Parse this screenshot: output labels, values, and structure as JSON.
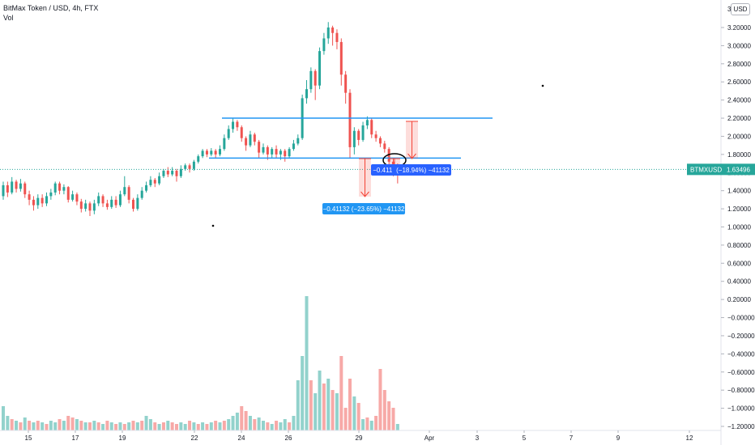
{
  "header": {
    "symbol_line": "BitMax Token / USD, 4h, FTX",
    "volume_label": "Vol",
    "currency_button": "USD"
  },
  "price_tag": {
    "symbol": "BTMXUSD",
    "value": "1.63496"
  },
  "measure_labels": [
    {
      "text": "−0.411   (−18.94%) −41132",
      "color": "#2962ff"
    },
    {
      "text": "−0.41132 (−23.65%) −41132",
      "color": "#2196f3"
    }
  ],
  "colors": {
    "up": "#26a69a",
    "down": "#ef5350",
    "line": "#2196f3",
    "price": "#26a69a",
    "measure": "#f44336"
  },
  "chart_data": {
    "type": "candlestick",
    "y_axis": {
      "ticks": [
        "3.20000",
        "3.00000",
        "2.80000",
        "2.60000",
        "2.40000",
        "2.20000",
        "2.00000",
        "1.80000",
        "1.60000",
        "1.40000",
        "1.20000",
        "1.00000",
        "0.80000",
        "0.60000",
        "0.40000",
        "0.20000",
        "−0.00000",
        "−0.20000",
        "−0.40000",
        "−0.60000",
        "−0.80000",
        "−1.00000",
        "−1.20000"
      ],
      "range": [
        -1.25,
        3.4
      ],
      "partial_top_label": "3."
    },
    "x_axis": {
      "ticks": [
        "15",
        "17",
        "19",
        "22",
        "24",
        "26",
        "29",
        "Apr",
        "3",
        "5",
        "7",
        "9",
        "12"
      ]
    },
    "horizontal_lines": [
      2.2,
      1.76
    ],
    "last_price": 1.63496,
    "candles": [
      [
        1.34,
        1.46,
        1.5,
        1.3
      ],
      [
        1.46,
        1.38,
        1.5,
        1.33
      ],
      [
        1.38,
        1.5,
        1.55,
        1.36
      ],
      [
        1.5,
        1.42,
        1.52,
        1.38
      ],
      [
        1.42,
        1.48,
        1.53,
        1.39
      ],
      [
        1.48,
        1.36,
        1.5,
        1.32
      ],
      [
        1.36,
        1.3,
        1.4,
        1.24
      ],
      [
        1.3,
        1.24,
        1.34,
        1.18
      ],
      [
        1.24,
        1.32,
        1.36,
        1.2
      ],
      [
        1.32,
        1.26,
        1.36,
        1.22
      ],
      [
        1.26,
        1.34,
        1.38,
        1.23
      ],
      [
        1.34,
        1.38,
        1.42,
        1.3
      ],
      [
        1.38,
        1.48,
        1.5,
        1.35
      ],
      [
        1.48,
        1.4,
        1.5,
        1.36
      ],
      [
        1.4,
        1.44,
        1.47,
        1.36
      ],
      [
        1.44,
        1.3,
        1.45,
        1.27
      ],
      [
        1.3,
        1.36,
        1.4,
        1.28
      ],
      [
        1.36,
        1.28,
        1.38,
        1.24
      ],
      [
        1.28,
        1.2,
        1.31,
        1.16
      ],
      [
        1.2,
        1.26,
        1.3,
        1.17
      ],
      [
        1.26,
        1.18,
        1.28,
        1.12
      ],
      [
        1.18,
        1.26,
        1.3,
        1.14
      ],
      [
        1.26,
        1.34,
        1.38,
        1.23
      ],
      [
        1.34,
        1.26,
        1.36,
        1.22
      ],
      [
        1.26,
        1.22,
        1.3,
        1.19
      ],
      [
        1.22,
        1.3,
        1.34,
        1.2
      ],
      [
        1.3,
        1.24,
        1.34,
        1.21
      ],
      [
        1.24,
        1.36,
        1.4,
        1.22
      ],
      [
        1.36,
        1.44,
        1.56,
        1.34
      ],
      [
        1.44,
        1.3,
        1.46,
        1.26
      ],
      [
        1.3,
        1.2,
        1.32,
        1.17
      ],
      [
        1.2,
        1.32,
        1.36,
        1.18
      ],
      [
        1.32,
        1.4,
        1.44,
        1.3
      ],
      [
        1.4,
        1.46,
        1.5,
        1.38
      ],
      [
        1.46,
        1.52,
        1.56,
        1.44
      ],
      [
        1.52,
        1.48,
        1.54,
        1.44
      ],
      [
        1.48,
        1.56,
        1.6,
        1.46
      ],
      [
        1.56,
        1.62,
        1.64,
        1.54
      ],
      [
        1.62,
        1.58,
        1.66,
        1.55
      ],
      [
        1.58,
        1.62,
        1.66,
        1.56
      ],
      [
        1.62,
        1.56,
        1.64,
        1.5
      ],
      [
        1.56,
        1.64,
        1.68,
        1.54
      ],
      [
        1.64,
        1.68,
        1.7,
        1.62
      ],
      [
        1.68,
        1.64,
        1.7,
        1.6
      ],
      [
        1.64,
        1.72,
        1.74,
        1.62
      ],
      [
        1.72,
        1.78,
        1.8,
        1.7
      ],
      [
        1.78,
        1.84,
        1.86,
        1.76
      ],
      [
        1.84,
        1.8,
        1.86,
        1.77
      ],
      [
        1.8,
        1.84,
        1.87,
        1.78
      ],
      [
        1.84,
        1.8,
        1.86,
        1.76
      ],
      [
        1.8,
        1.86,
        1.9,
        1.78
      ],
      [
        1.86,
        1.98,
        2.02,
        1.84
      ],
      [
        1.98,
        2.08,
        2.12,
        1.96
      ],
      [
        2.08,
        2.16,
        2.2,
        2.04
      ],
      [
        2.16,
        2.1,
        2.18,
        2.06
      ],
      [
        2.1,
        1.98,
        2.12,
        1.94
      ],
      [
        1.98,
        1.9,
        2.0,
        1.84
      ],
      [
        1.9,
        2.02,
        2.06,
        1.88
      ],
      [
        2.02,
        1.94,
        2.04,
        1.9
      ],
      [
        1.94,
        1.82,
        1.96,
        1.76
      ],
      [
        1.82,
        1.88,
        1.92,
        1.8
      ],
      [
        1.88,
        1.8,
        1.9,
        1.74
      ],
      [
        1.8,
        1.86,
        1.88,
        1.76
      ],
      [
        1.86,
        1.8,
        1.9,
        1.76
      ],
      [
        1.8,
        1.84,
        1.86,
        1.74
      ],
      [
        1.84,
        1.78,
        1.86,
        1.72
      ],
      [
        1.78,
        1.86,
        1.88,
        1.76
      ],
      [
        1.86,
        1.92,
        1.96,
        1.84
      ],
      [
        1.92,
        1.98,
        2.02,
        1.9
      ],
      [
        1.98,
        2.42,
        2.46,
        1.96
      ],
      [
        2.42,
        2.52,
        2.62,
        2.36
      ],
      [
        2.52,
        2.72,
        2.76,
        2.48
      ],
      [
        2.72,
        2.56,
        2.74,
        2.4
      ],
      [
        2.56,
        2.94,
        2.98,
        2.52
      ],
      [
        2.94,
        3.08,
        3.14,
        2.9
      ],
      [
        3.08,
        3.2,
        3.26,
        3.02
      ],
      [
        3.2,
        3.14,
        3.22,
        3.0
      ],
      [
        3.14,
        3.04,
        3.18,
        2.96
      ],
      [
        3.04,
        2.68,
        3.08,
        2.56
      ],
      [
        2.68,
        2.48,
        2.72,
        2.36
      ],
      [
        2.48,
        1.88,
        2.52,
        1.76
      ],
      [
        1.88,
        2.06,
        2.1,
        1.8
      ],
      [
        2.06,
        1.96,
        2.08,
        1.9
      ],
      [
        1.96,
        2.12,
        2.16,
        1.94
      ],
      [
        2.12,
        2.18,
        2.22,
        2.08
      ],
      [
        2.18,
        2.02,
        2.2,
        1.98
      ],
      [
        2.02,
        1.98,
        2.06,
        1.94
      ],
      [
        1.98,
        1.92,
        2.0,
        1.88
      ],
      [
        1.92,
        1.86,
        1.95,
        1.82
      ],
      [
        1.86,
        1.72,
        1.88,
        1.66
      ],
      [
        1.72,
        1.64,
        1.76,
        1.56
      ],
      [
        1.64,
        1.63,
        1.7,
        1.48
      ]
    ],
    "volume": [
      [
        30,
        "up"
      ],
      [
        18,
        "up"
      ],
      [
        14,
        "down"
      ],
      [
        12,
        "up"
      ],
      [
        10,
        "down"
      ],
      [
        16,
        "up"
      ],
      [
        12,
        "down"
      ],
      [
        10,
        "up"
      ],
      [
        12,
        "down"
      ],
      [
        10,
        "up"
      ],
      [
        8,
        "down"
      ],
      [
        12,
        "up"
      ],
      [
        10,
        "up"
      ],
      [
        14,
        "down"
      ],
      [
        12,
        "up"
      ],
      [
        18,
        "down"
      ],
      [
        16,
        "down"
      ],
      [
        14,
        "up"
      ],
      [
        12,
        "down"
      ],
      [
        10,
        "up"
      ],
      [
        10,
        "down"
      ],
      [
        12,
        "up"
      ],
      [
        10,
        "down"
      ],
      [
        8,
        "up"
      ],
      [
        12,
        "down"
      ],
      [
        10,
        "up"
      ],
      [
        8,
        "down"
      ],
      [
        10,
        "up"
      ],
      [
        8,
        "down"
      ],
      [
        10,
        "up"
      ],
      [
        12,
        "down"
      ],
      [
        10,
        "up"
      ],
      [
        12,
        "down"
      ],
      [
        18,
        "up"
      ],
      [
        14,
        "up"
      ],
      [
        10,
        "down"
      ],
      [
        8,
        "up"
      ],
      [
        10,
        "down"
      ],
      [
        12,
        "up"
      ],
      [
        10,
        "down"
      ],
      [
        8,
        "down"
      ],
      [
        10,
        "up"
      ],
      [
        8,
        "up"
      ],
      [
        12,
        "down"
      ],
      [
        10,
        "up"
      ],
      [
        8,
        "down"
      ],
      [
        10,
        "up"
      ],
      [
        8,
        "down"
      ],
      [
        10,
        "up"
      ],
      [
        12,
        "down"
      ],
      [
        10,
        "up"
      ],
      [
        12,
        "down"
      ],
      [
        14,
        "up"
      ],
      [
        18,
        "up"
      ],
      [
        22,
        "up"
      ],
      [
        30,
        "down"
      ],
      [
        24,
        "down"
      ],
      [
        18,
        "up"
      ],
      [
        14,
        "down"
      ],
      [
        16,
        "up"
      ],
      [
        12,
        "up"
      ],
      [
        10,
        "down"
      ],
      [
        8,
        "up"
      ],
      [
        12,
        "down"
      ],
      [
        10,
        "up"
      ],
      [
        14,
        "up"
      ],
      [
        10,
        "down"
      ],
      [
        18,
        "up"
      ],
      [
        62,
        "up"
      ],
      [
        92,
        "up"
      ],
      [
        166,
        "up"
      ],
      [
        62,
        "down"
      ],
      [
        46,
        "up"
      ],
      [
        74,
        "up"
      ],
      [
        58,
        "down"
      ],
      [
        64,
        "up"
      ],
      [
        50,
        "down"
      ],
      [
        46,
        "up"
      ],
      [
        92,
        "down"
      ],
      [
        28,
        "down"
      ],
      [
        64,
        "down"
      ],
      [
        42,
        "up"
      ],
      [
        34,
        "down"
      ],
      [
        14,
        "up"
      ],
      [
        16,
        "down"
      ],
      [
        12,
        "up"
      ],
      [
        18,
        "down"
      ],
      [
        76,
        "down"
      ],
      [
        50,
        "down"
      ],
      [
        36,
        "down"
      ],
      [
        28,
        "down"
      ],
      [
        8,
        "up"
      ]
    ]
  }
}
